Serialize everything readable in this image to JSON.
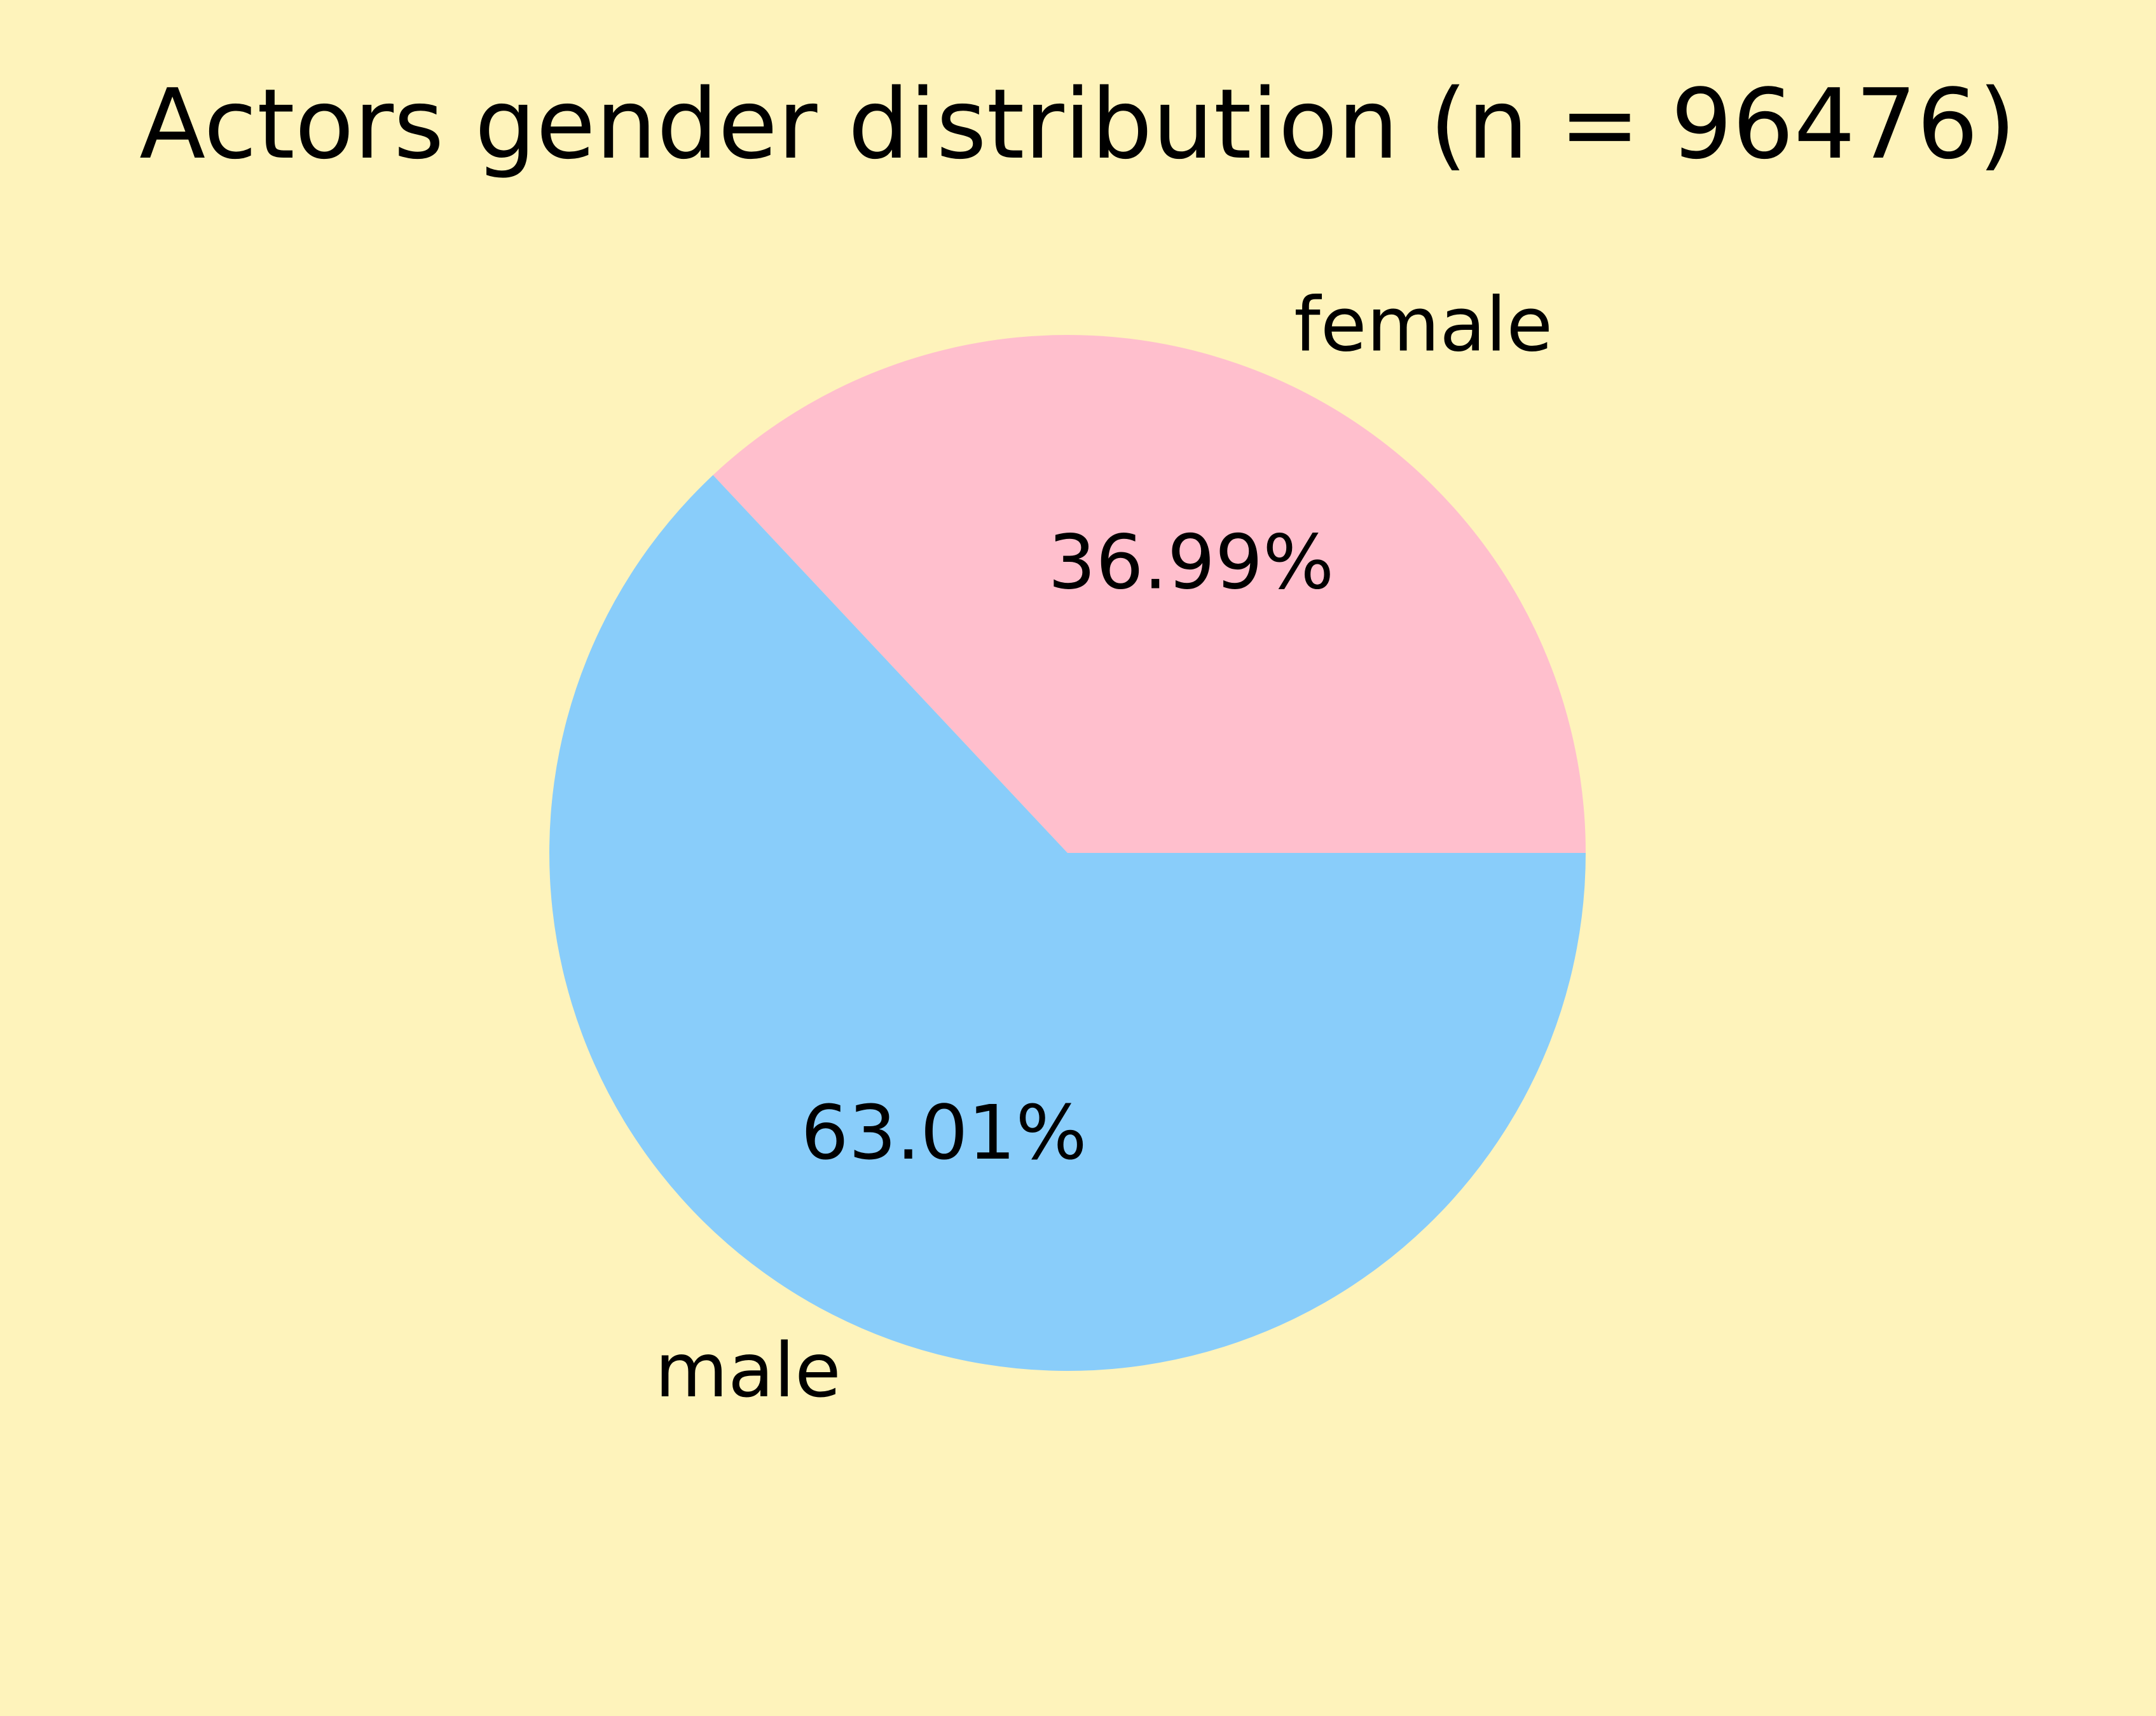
{
  "chart_data": {
    "type": "pie",
    "title": "Actors gender distribution (n = 96476)",
    "slices": [
      {
        "label": "female",
        "value": 36.99,
        "pct_label": "36.99%",
        "color": "#ffbfcd"
      },
      {
        "label": "male",
        "value": 63.01,
        "pct_label": "63.01%",
        "color": "#89cdfa"
      }
    ],
    "start_angle_deg": 0,
    "direction": "counterclockwise",
    "background": "#fef3bb"
  }
}
